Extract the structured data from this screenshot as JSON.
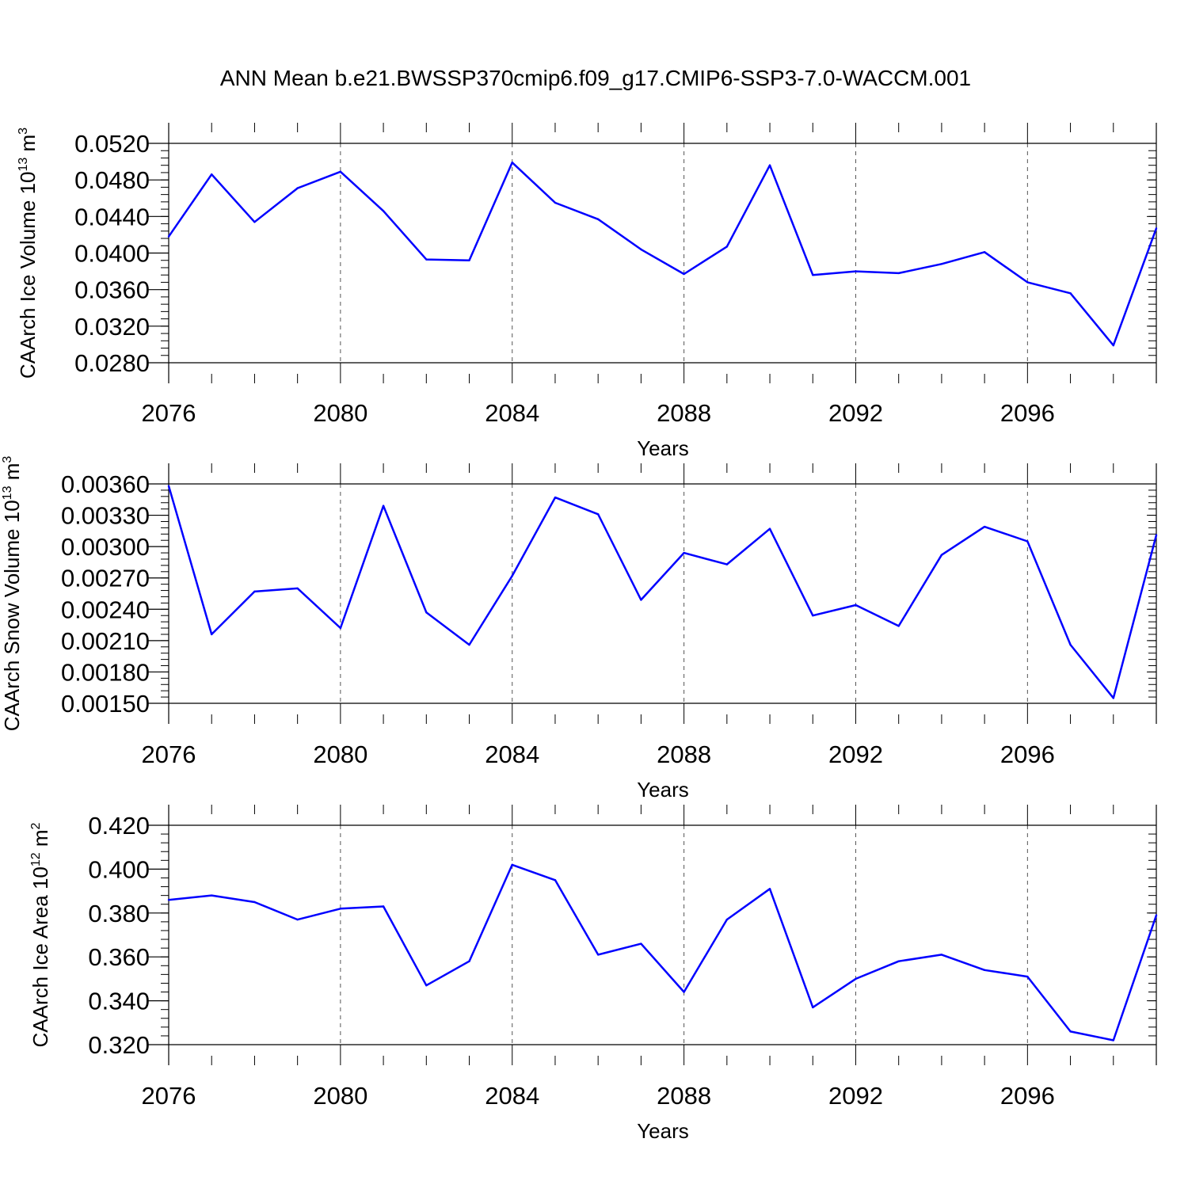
{
  "figure": {
    "title": "ANN Mean b.e21.BWSSP370cmip6.f09_g17.CMIP6-SSP3-7.0-WACCM.001"
  },
  "chart_data": [
    {
      "type": "line",
      "xlabel": "Years",
      "ylabel": "CAArch Ice Volume 10",
      "ylabel_exp": "13",
      "ylabel_unit": "m",
      "ylabel_unit_exp": "3",
      "xlim": [
        2076,
        2099
      ],
      "ylim": [
        0.028,
        0.052
      ],
      "xticks": [
        2076,
        2080,
        2084,
        2088,
        2092,
        2096
      ],
      "yticks": [
        "0.0520",
        "0.0480",
        "0.0440",
        "0.0400",
        "0.0360",
        "0.0320",
        "0.0280"
      ],
      "grid": "dashed vertical lines at major x ticks",
      "line_color": "#0000ff",
      "x": [
        2076,
        2077,
        2078,
        2079,
        2080,
        2081,
        2082,
        2083,
        2084,
        2085,
        2086,
        2087,
        2088,
        2089,
        2090,
        2091,
        2092,
        2093,
        2094,
        2095,
        2096,
        2097,
        2098,
        2099
      ],
      "values": [
        0.0418,
        0.0486,
        0.0434,
        0.0471,
        0.0489,
        0.0446,
        0.0393,
        0.0392,
        0.0499,
        0.0455,
        0.0437,
        0.0404,
        0.0377,
        0.0407,
        0.0496,
        0.0376,
        0.038,
        0.0378,
        0.0388,
        0.0401,
        0.0368,
        0.0356,
        0.0299,
        0.0427
      ]
    },
    {
      "type": "line",
      "xlabel": "Years",
      "ylabel": "CAArch Snow Volume 10",
      "ylabel_exp": "13",
      "ylabel_unit": "m",
      "ylabel_unit_exp": "3",
      "xlim": [
        2076,
        2099
      ],
      "ylim": [
        0.0015,
        0.0036
      ],
      "xticks": [
        2076,
        2080,
        2084,
        2088,
        2092,
        2096
      ],
      "yticks": [
        "0.00360",
        "0.00330",
        "0.00300",
        "0.00270",
        "0.00240",
        "0.00210",
        "0.00180",
        "0.00150"
      ],
      "grid": "dashed vertical lines at major x ticks",
      "line_color": "#0000ff",
      "x": [
        2076,
        2077,
        2078,
        2079,
        2080,
        2081,
        2082,
        2083,
        2084,
        2085,
        2086,
        2087,
        2088,
        2089,
        2090,
        2091,
        2092,
        2093,
        2094,
        2095,
        2096,
        2097,
        2098,
        2099
      ],
      "values": [
        0.00358,
        0.00216,
        0.00257,
        0.0026,
        0.00222,
        0.00339,
        0.00237,
        0.00206,
        0.00272,
        0.00347,
        0.00331,
        0.00249,
        0.00294,
        0.00283,
        0.00317,
        0.00234,
        0.00244,
        0.00224,
        0.00292,
        0.00319,
        0.00305,
        0.00206,
        0.00155,
        0.00311
      ]
    },
    {
      "type": "line",
      "xlabel": "Years",
      "ylabel": "CAArch Ice Area 10",
      "ylabel_exp": "12",
      "ylabel_unit": "m",
      "ylabel_unit_exp": "2",
      "xlim": [
        2076,
        2099
      ],
      "ylim": [
        0.32,
        0.42
      ],
      "xticks": [
        2076,
        2080,
        2084,
        2088,
        2092,
        2096
      ],
      "yticks": [
        "0.420",
        "0.400",
        "0.380",
        "0.360",
        "0.340",
        "0.320"
      ],
      "grid": "dashed vertical lines at major x ticks",
      "line_color": "#0000ff",
      "x": [
        2076,
        2077,
        2078,
        2079,
        2080,
        2081,
        2082,
        2083,
        2084,
        2085,
        2086,
        2087,
        2088,
        2089,
        2090,
        2091,
        2092,
        2093,
        2094,
        2095,
        2096,
        2097,
        2098,
        2099
      ],
      "values": [
        0.386,
        0.388,
        0.385,
        0.377,
        0.382,
        0.383,
        0.347,
        0.358,
        0.402,
        0.395,
        0.361,
        0.366,
        0.344,
        0.377,
        0.391,
        0.337,
        0.35,
        0.358,
        0.361,
        0.354,
        0.351,
        0.326,
        0.322,
        0.379
      ]
    }
  ]
}
